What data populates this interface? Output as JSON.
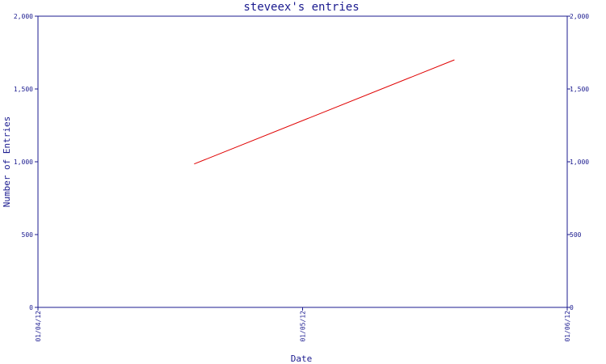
{
  "chart_data": {
    "type": "line",
    "title": "steveex's entries",
    "xlabel": "Date",
    "ylabel": "Number of Entries",
    "x_ticks": [
      "01/04/12",
      "01/05/12",
      "01/06/12"
    ],
    "y_ticks": [
      "0",
      "500",
      "1,000",
      "1,500",
      "2,000"
    ],
    "ylim": [
      0,
      2000
    ],
    "xlim": [
      "2012-04-01",
      "2012-06-01"
    ],
    "series": [
      {
        "color": "#e00000",
        "points": [
          {
            "x": "2012-04-19",
            "y": 985
          },
          {
            "x": "2012-05-19",
            "y": 1700
          }
        ]
      }
    ],
    "grid": false,
    "secondary_y_axis": true
  },
  "colors": {
    "axis": "#1b1b8f",
    "series": "#e00000",
    "background": "#ffffff"
  }
}
